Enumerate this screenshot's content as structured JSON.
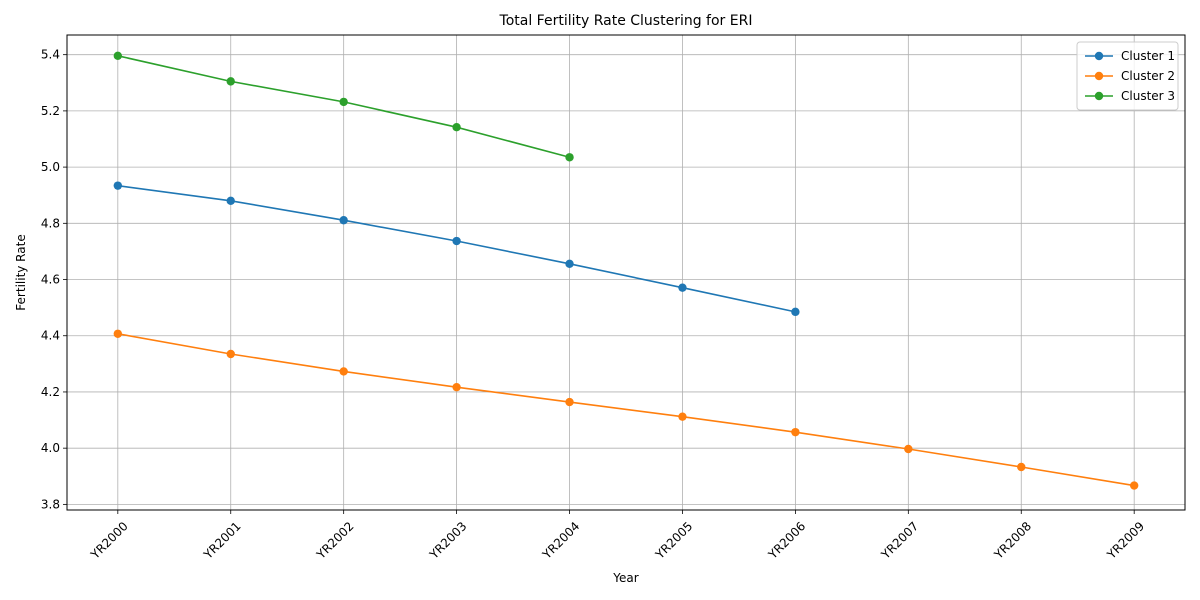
{
  "chart_data": {
    "type": "line",
    "title": "Total Fertility Rate Clustering for ERI",
    "xlabel": "Year",
    "ylabel": "Fertility Rate",
    "categories": [
      "YR2000",
      "YR2001",
      "YR2002",
      "YR2003",
      "YR2004",
      "YR2005",
      "YR2006",
      "YR2007",
      "YR2008",
      "YR2009"
    ],
    "ylim": [
      3.78,
      5.47
    ],
    "yticks": [
      3.8,
      4.0,
      4.2,
      4.4,
      4.6,
      4.8,
      5.0,
      5.2,
      5.4
    ],
    "ytick_labels": [
      "3.8",
      "4.0",
      "4.2",
      "4.4",
      "4.6",
      "4.8",
      "5.0",
      "5.2",
      "5.4"
    ],
    "grid": true,
    "legend_position": "top-right",
    "series": [
      {
        "name": "Cluster 1",
        "color": "#1f77b4",
        "values": [
          4.934,
          4.88,
          4.811,
          4.737,
          4.656,
          4.571,
          4.485,
          null,
          null,
          null
        ]
      },
      {
        "name": "Cluster 2",
        "color": "#ff7f0e",
        "values": [
          4.407,
          4.335,
          4.273,
          4.217,
          4.164,
          4.112,
          4.057,
          3.997,
          3.933,
          3.867
        ]
      },
      {
        "name": "Cluster 3",
        "color": "#2ca02c",
        "values": [
          5.396,
          5.305,
          5.232,
          5.142,
          5.035,
          null,
          null,
          null,
          null,
          null
        ]
      }
    ]
  }
}
